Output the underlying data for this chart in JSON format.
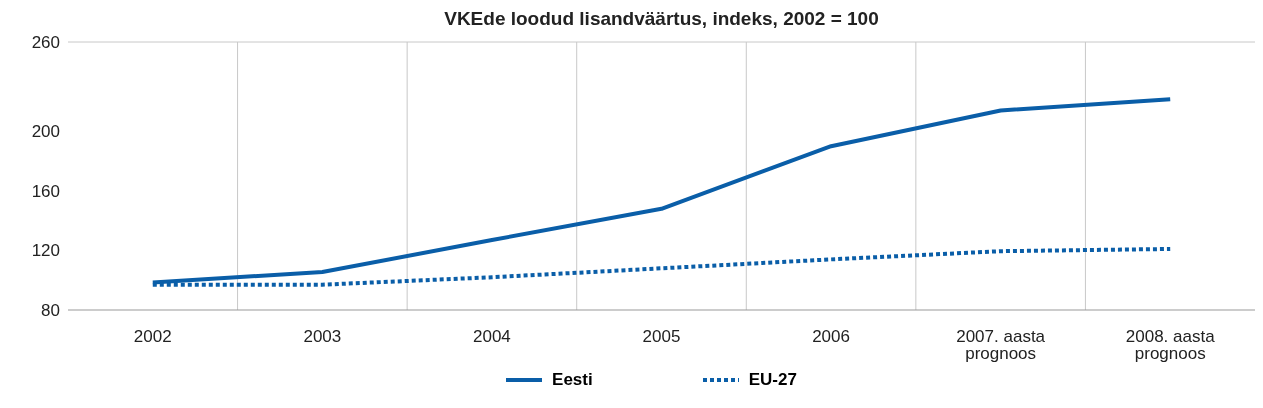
{
  "chart_data": {
    "type": "line",
    "title": "VKEde loodud lisandväärtus, indeks, 2002 = 100",
    "categories": [
      "2002",
      "2003",
      "2004",
      "2005",
      "2006",
      "2007. aasta prognoos",
      "2008. aasta prognoos"
    ],
    "series": [
      {
        "name": "Eesti",
        "color": "#0a5ea8",
        "line_style": "solid",
        "values": [
          98.5,
          105.5,
          127,
          148,
          190,
          214,
          221.5
        ]
      },
      {
        "name": "EU-27",
        "color": "#0a5ea8",
        "line_style": "dotted",
        "values": [
          97,
          97,
          102,
          108,
          114,
          119.5,
          121
        ]
      }
    ],
    "ylim": [
      80,
      260
    ],
    "yticks": [
      80,
      120,
      160,
      200,
      260
    ],
    "grid": "x",
    "legend": "bottom",
    "marker": "none"
  }
}
